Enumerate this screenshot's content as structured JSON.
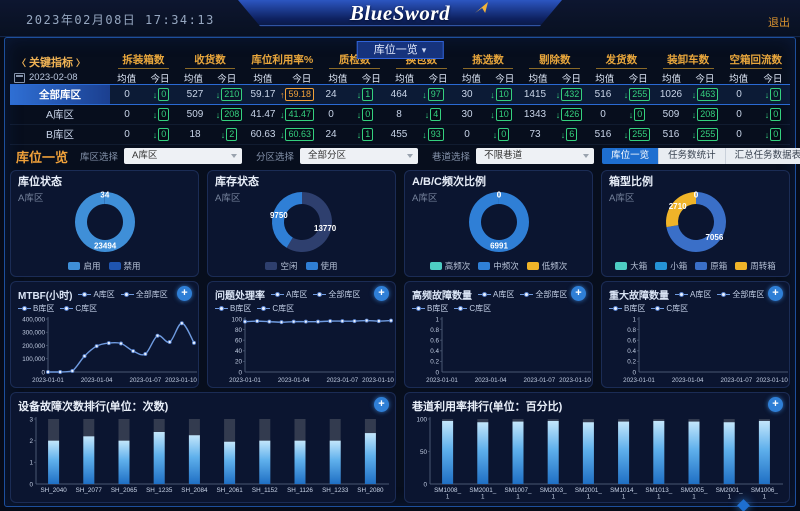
{
  "header": {
    "datetime": "2023年02月08日 17:34:13",
    "logo": "BlueSword",
    "logout_label": "退出",
    "nav_button": "库位一览"
  },
  "kpi": {
    "prev_arrow": "〈",
    "title": "关键指标",
    "next_arrow": "〉",
    "date": "2023-02-08",
    "subheaders": [
      "均值",
      "今日"
    ],
    "columns": [
      "拆装箱数",
      "收货数",
      "库位利用率%",
      "质检数",
      "换包数",
      "拣选数",
      "剔除数",
      "发货数",
      "装卸车数",
      "空箱回流数"
    ],
    "rows": [
      {
        "label": "全部库区",
        "active": true,
        "cells": [
          {
            "a": "0",
            "t": "0",
            "d": "down"
          },
          {
            "a": "527",
            "t": "210",
            "d": "down"
          },
          {
            "a": "59.17",
            "t": "59.18",
            "d": "up",
            "hl": true
          },
          {
            "a": "24",
            "t": "1",
            "d": "down"
          },
          {
            "a": "464",
            "t": "97",
            "d": "down"
          },
          {
            "a": "30",
            "t": "10",
            "d": "down"
          },
          {
            "a": "1415",
            "t": "432",
            "d": "down"
          },
          {
            "a": "516",
            "t": "255",
            "d": "down"
          },
          {
            "a": "1026",
            "t": "463",
            "d": "down"
          },
          {
            "a": "0",
            "t": "0",
            "d": "down"
          }
        ]
      },
      {
        "label": "A库区",
        "active": false,
        "cells": [
          {
            "a": "0",
            "t": "0",
            "d": "down"
          },
          {
            "a": "509",
            "t": "208",
            "d": "down"
          },
          {
            "a": "41.47",
            "t": "41.47",
            "d": "down"
          },
          {
            "a": "0",
            "t": "0",
            "d": "down"
          },
          {
            "a": "8",
            "t": "4",
            "d": "down"
          },
          {
            "a": "30",
            "t": "10",
            "d": "down"
          },
          {
            "a": "1343",
            "t": "426",
            "d": "down"
          },
          {
            "a": "0",
            "t": "0",
            "d": "down"
          },
          {
            "a": "509",
            "t": "208",
            "d": "down"
          },
          {
            "a": "0",
            "t": "0",
            "d": "down"
          }
        ]
      },
      {
        "label": "B库区",
        "active": false,
        "cells": [
          {
            "a": "0",
            "t": "0",
            "d": "down"
          },
          {
            "a": "18",
            "t": "2",
            "d": "down"
          },
          {
            "a": "60.63",
            "t": "60.63",
            "d": "down"
          },
          {
            "a": "24",
            "t": "1",
            "d": "down"
          },
          {
            "a": "455",
            "t": "93",
            "d": "down"
          },
          {
            "a": "0",
            "t": "0",
            "d": "down"
          },
          {
            "a": "73",
            "t": "6",
            "d": "down"
          },
          {
            "a": "516",
            "t": "255",
            "d": "down"
          },
          {
            "a": "516",
            "t": "255",
            "d": "down"
          },
          {
            "a": "0",
            "t": "0",
            "d": "down"
          }
        ]
      }
    ]
  },
  "filterbar": {
    "title": "库位一览",
    "filters": [
      {
        "label": "库区选择",
        "value": "A库区"
      },
      {
        "label": "分区选择",
        "value": "全部分区"
      },
      {
        "label": "巷道选择",
        "value": "不限巷道"
      }
    ],
    "tabs": [
      {
        "label": "库位一览",
        "active": true
      },
      {
        "label": "任务数统计",
        "active": false
      },
      {
        "label": "汇总任务数据表",
        "active": false
      },
      {
        "label": "详细任务数据表",
        "active": false
      }
    ]
  },
  "colors": {
    "accent_orange": "#f0a13a",
    "up_orange": "#f0a13a",
    "down_green": "#35d07f",
    "active_blue": "#2a6ad4",
    "line_blue": "#6f9be0"
  },
  "chart_data": [
    {
      "type": "donut",
      "title": "库位状态",
      "subtitle": "A库区",
      "legend_position": "bottom",
      "slices": [
        {
          "label": "启用",
          "value": 23494,
          "color": "#3f8fd8"
        },
        {
          "label": "禁用",
          "value": 34,
          "color": "#1f55b0"
        }
      ]
    },
    {
      "type": "donut",
      "title": "库存状态",
      "subtitle": "A库区",
      "legend_position": "bottom",
      "slices": [
        {
          "label": "空闲",
          "value": 13770,
          "color": "#2e3f6e"
        },
        {
          "label": "使用",
          "value": 9750,
          "color": "#2f7fd6"
        }
      ]
    },
    {
      "type": "donut",
      "title": "A/B/C频次比例",
      "subtitle": "A库区",
      "legend_position": "bottom",
      "slices": [
        {
          "label": "高频次",
          "value": 0,
          "color": "#4ecdc4"
        },
        {
          "label": "中频次",
          "value": 6991,
          "color": "#2f7fd6"
        },
        {
          "label": "低频次",
          "value": 0,
          "color": "#f0b429"
        }
      ]
    },
    {
      "type": "donut",
      "title": "箱型比例",
      "subtitle": "A库区",
      "legend_position": "bottom",
      "slices": [
        {
          "label": "大箱",
          "value": 0,
          "color": "#4ecdc4"
        },
        {
          "label": "小箱",
          "value": 0,
          "color": "#2593d6"
        },
        {
          "label": "原箱",
          "value": 7056,
          "color": "#3a6fc8"
        },
        {
          "label": "周转箱",
          "value": 2710,
          "color": "#f0b429"
        }
      ]
    },
    {
      "type": "line",
      "title": "MTBF(小时)",
      "legend": [
        "A库区",
        "全部库区",
        "B库区",
        "C库区"
      ],
      "x_ticklabels": [
        "2023-01-01",
        "2023-01-04",
        "2023-01-07",
        "2023-01-10"
      ],
      "ylim": [
        0,
        400000
      ],
      "yticks": [
        "0",
        "100,000",
        "200,000",
        "300,000",
        "400,000"
      ],
      "grid": false,
      "values": [
        0,
        0,
        8000,
        120000,
        195000,
        218000,
        215000,
        158000,
        136000,
        274000,
        226000,
        368000,
        220000
      ]
    },
    {
      "type": "line",
      "title": "问题处理率",
      "legend": [
        "A库区",
        "全部库区",
        "B库区",
        "C库区"
      ],
      "x_ticklabels": [
        "2023-01-01",
        "2023-01-04",
        "2023-01-07",
        "2023-01-10"
      ],
      "ylim": [
        0,
        100
      ],
      "yticks": [
        "0",
        "20",
        "40",
        "60",
        "80",
        "100"
      ],
      "grid": false,
      "values": [
        95,
        96,
        95,
        94,
        95,
        95,
        95,
        96,
        96,
        96,
        97,
        96,
        97
      ]
    },
    {
      "type": "line",
      "title": "高频故障数量",
      "legend": [
        "A库区",
        "全部库区",
        "B库区",
        "C库区"
      ],
      "x_ticklabels": [
        "2023-01-01",
        "2023-01-04",
        "2023-01-07",
        "2023-01-10"
      ],
      "ylim": [
        0,
        1
      ],
      "yticks": [
        "0",
        "0.2",
        "0.4",
        "0.6",
        "0.8",
        "1"
      ],
      "grid": false,
      "values": []
    },
    {
      "type": "line",
      "title": "重大故障数量",
      "legend": [
        "A库区",
        "全部库区",
        "B库区",
        "C库区"
      ],
      "x_ticklabels": [
        "2023-01-01",
        "2023-01-04",
        "2023-01-07",
        "2023-01-10"
      ],
      "ylim": [
        0,
        1
      ],
      "yticks": [
        "0",
        "0.2",
        "0.4",
        "0.6",
        "0.8",
        "1"
      ],
      "grid": false,
      "values": []
    },
    {
      "type": "bar",
      "title": "设备故障次数排行(单位：次数)",
      "categories": [
        "SH_2040",
        "SH_2077",
        "SH_2065",
        "SH_1235",
        "SH_2084",
        "SH_2061",
        "SH_1152",
        "SH_1126",
        "SH_1233",
        "SH_2080"
      ],
      "values": [
        2,
        2.2,
        2,
        2.4,
        2.25,
        1.95,
        2,
        2,
        2,
        2.35
      ],
      "ylim": [
        0,
        3
      ],
      "yticks": [
        "0",
        "1",
        "2",
        "3"
      ],
      "track_max": 3
    },
    {
      "type": "bar",
      "title": "巷道利用率排行(单位：百分比)",
      "categories": [
        "SM1008_\n1",
        "SM2001_\n1",
        "SM1007_\n1",
        "SM2003_\n1",
        "SM2001_\n1",
        "SM1014_\n1",
        "SM1013_\n1",
        "SM2005_\n1",
        "SM2001_\n1",
        "SM1006_\n1"
      ],
      "values": [
        97,
        95,
        96,
        97,
        95,
        96,
        97,
        96,
        95,
        97
      ],
      "ylim": [
        0,
        100
      ],
      "yticks": [
        "0",
        "50",
        "100"
      ],
      "track_max": 100
    }
  ]
}
